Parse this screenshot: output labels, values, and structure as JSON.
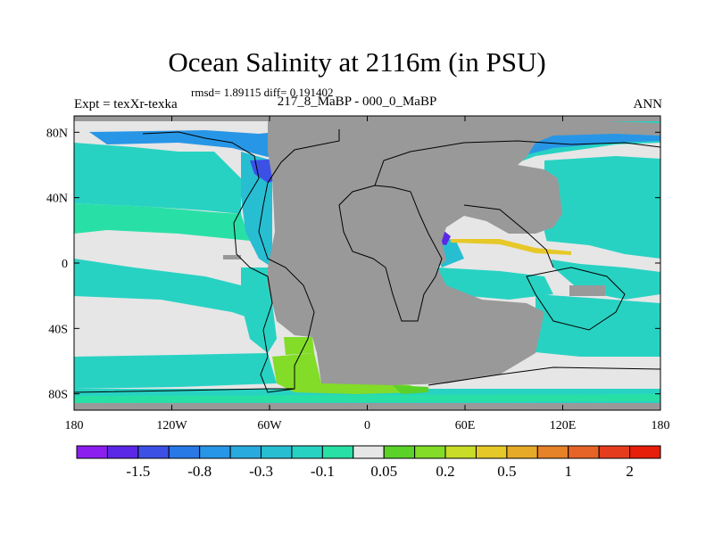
{
  "title": "Ocean Salinity at 2116m (in PSU)",
  "stats": "rmsd= 1.89115 diff= 0.191402",
  "left_label": "Expt = texXr-texka",
  "center_label": "217_8_MaBP - 000_0_MaBP",
  "right_label": "ANN",
  "map": {
    "lon_range": [
      -180,
      180
    ],
    "lat_range": [
      -90,
      90
    ],
    "lon_ticks": [
      {
        "value": -180,
        "label": "180"
      },
      {
        "value": -120,
        "label": "120W"
      },
      {
        "value": -60,
        "label": "60W"
      },
      {
        "value": 0,
        "label": "0"
      },
      {
        "value": 60,
        "label": "60E"
      },
      {
        "value": 120,
        "label": "120E"
      },
      {
        "value": 180,
        "label": "180"
      }
    ],
    "lat_ticks": [
      {
        "value": 80,
        "label": "80N"
      },
      {
        "value": 40,
        "label": "40N"
      },
      {
        "value": 0,
        "label": "0"
      },
      {
        "value": -40,
        "label": "40S"
      },
      {
        "value": -80,
        "label": "80S"
      }
    ],
    "land_color": "#999999",
    "ocean_background_color": "#e6e6e6"
  },
  "colorbar": {
    "colors": [
      "#8c1ef0",
      "#5a28e6",
      "#3c50e6",
      "#2878e6",
      "#2896e6",
      "#28aade",
      "#28bed2",
      "#28d2c3",
      "#28e0a5",
      "#e6e6e6",
      "#5ad228",
      "#82dc28",
      "#c8dc28",
      "#e6c828",
      "#e6aa28",
      "#e68228",
      "#e66428",
      "#e63c1e",
      "#e61e0a"
    ],
    "labels": [
      {
        "after_index": 1,
        "text": "-1.5"
      },
      {
        "after_index": 3,
        "text": "-0.8"
      },
      {
        "after_index": 5,
        "text": "-0.3"
      },
      {
        "after_index": 7,
        "text": "-0.1"
      },
      {
        "after_index": 9,
        "text": "0.05"
      },
      {
        "after_index": 11,
        "text": "0.2"
      },
      {
        "after_index": 13,
        "text": "0.5"
      },
      {
        "after_index": 15,
        "text": "1"
      },
      {
        "after_index": 17,
        "text": "2"
      }
    ]
  }
}
